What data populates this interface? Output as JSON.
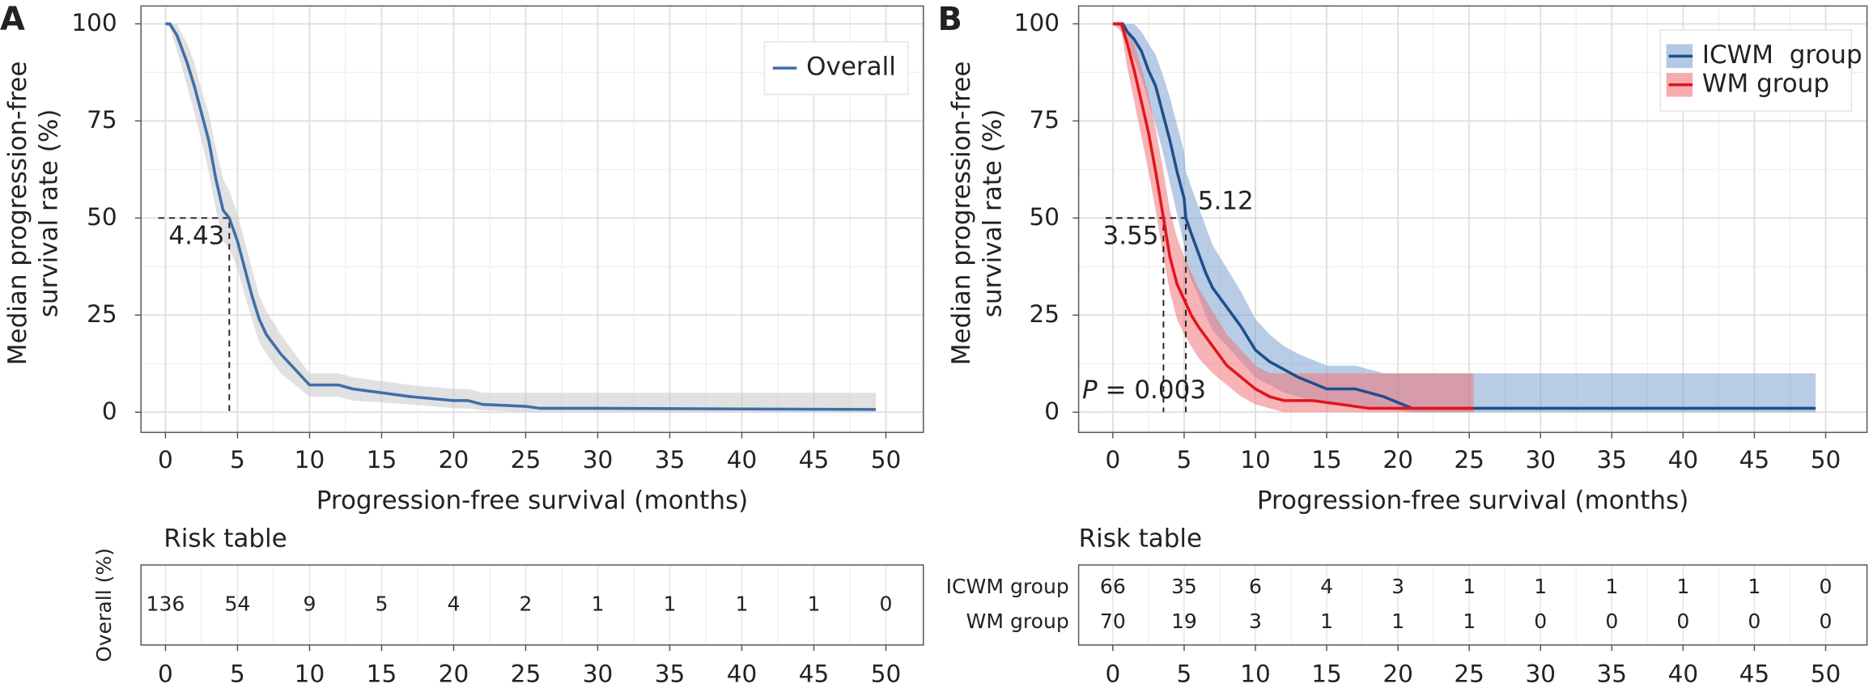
{
  "chart_data": [
    {
      "type": "step",
      "panel_label": "A",
      "xlabel": "Progression-free survival (months)",
      "ylabel": [
        "Median progression-free",
        "survival rate (%)"
      ],
      "xlim": [
        -1.7,
        52.6
      ],
      "ylim": [
        -5.2,
        104.6
      ],
      "xticks": [
        0,
        5,
        10,
        15,
        20,
        25,
        30,
        35,
        40,
        45,
        50
      ],
      "yticks": [
        0,
        25,
        50,
        75,
        100
      ],
      "grid": true,
      "legend": "top-right",
      "legend_key": "line",
      "series": [
        {
          "name": "Overall",
          "color": "#3e6ea8",
          "band_color": "#c8c8c8",
          "label_color": "#1f4e8c",
          "x": [
            0,
            0.3,
            0.8,
            1.2,
            1.5,
            2,
            2.5,
            3,
            3.5,
            4,
            4.43,
            5,
            5.5,
            6,
            6.5,
            7,
            8,
            9,
            10,
            12,
            13,
            15,
            17,
            20,
            21,
            22,
            25,
            26,
            30,
            49.3
          ],
          "values": [
            100,
            100,
            97,
            93,
            90,
            84,
            77,
            70,
            60,
            52,
            50,
            44,
            37,
            30,
            24,
            20,
            15,
            11,
            7,
            7,
            6,
            5,
            4,
            3,
            3,
            2,
            1.5,
            1,
            1,
            0.7
          ],
          "ci_upper": [
            100,
            100,
            100,
            97,
            95,
            90,
            83,
            77,
            68,
            60,
            57,
            51,
            44,
            37,
            30,
            26,
            20,
            15,
            10,
            10,
            9,
            8,
            7,
            6,
            6,
            5,
            5,
            5,
            5,
            5
          ],
          "ci_lower": [
            100,
            99,
            93,
            88,
            84,
            77,
            70,
            62,
            52,
            44,
            42,
            37,
            30,
            24,
            18,
            15,
            10,
            7,
            4,
            4,
            3,
            2.5,
            2,
            1,
            1,
            0.5,
            0,
            0,
            0,
            0
          ],
          "median": 4.43
        }
      ],
      "risk_table": {
        "title": "Risk table",
        "times": [
          0,
          5,
          10,
          15,
          20,
          25,
          30,
          35,
          40,
          45,
          50
        ],
        "rows": [
          {
            "name": "Overall (%)",
            "color": "#1f4e8c",
            "values": [
              136,
              54,
              9,
              5,
              4,
              2,
              1,
              1,
              1,
              1,
              0
            ]
          }
        ]
      }
    },
    {
      "type": "step",
      "panel_label": "B",
      "xlabel": "Progression-free survival (months)",
      "ylabel": [
        "Median progression-free",
        "survival rate (%)"
      ],
      "xlim": [
        -2.4,
        52.9
      ],
      "ylim": [
        -5.2,
        104.6
      ],
      "xticks": [
        0,
        5,
        10,
        15,
        20,
        25,
        30,
        35,
        40,
        45,
        50
      ],
      "yticks": [
        0,
        25,
        50,
        75,
        100
      ],
      "grid": true,
      "legend": "top-right",
      "legend_key": "band",
      "annotation": "P = 0.003",
      "series": [
        {
          "name": "ICWM  group",
          "color": "#1f4e8c",
          "band_color": "#7ea3d2",
          "label_color": "#1f4e8c",
          "x": [
            0,
            0.7,
            1,
            1.5,
            2,
            2.5,
            3,
            3.5,
            4,
            4.5,
            5,
            5.12,
            5.5,
            6,
            6.5,
            7,
            8,
            9,
            10,
            11,
            12,
            13,
            15,
            17,
            19,
            21,
            25,
            49.3
          ],
          "values": [
            100,
            100,
            98,
            96,
            93,
            88,
            84,
            77,
            70,
            62,
            55,
            50,
            46,
            41,
            36,
            32,
            27,
            22,
            16,
            13,
            11,
            9,
            6,
            6,
            4,
            1,
            1,
            1
          ],
          "ci_upper": [
            100,
            100,
            100,
            100,
            98,
            95,
            92,
            87,
            81,
            74,
            67,
            62,
            58,
            53,
            48,
            43,
            37,
            31,
            24,
            20,
            17,
            15,
            12,
            12,
            10,
            10,
            10,
            10
          ],
          "ci_lower": [
            100,
            99,
            95,
            91,
            86,
            80,
            74,
            67,
            59,
            51,
            43,
            38,
            34,
            30,
            25,
            21,
            17,
            13,
            9,
            7,
            5,
            4,
            2,
            2,
            1,
            0,
            0,
            0
          ],
          "median": 5.12
        },
        {
          "name": "WM group",
          "color": "#e4141b",
          "band_color": "#f07478",
          "label_color": "#e8620c",
          "x": [
            0,
            0.6,
            1,
            1.5,
            2,
            2.5,
            3,
            3.55,
            4,
            4.5,
            5,
            5.5,
            6,
            7,
            8,
            9,
            10,
            11,
            12,
            14,
            16,
            18,
            20,
            25.3
          ],
          "values": [
            100,
            100,
            95,
            88,
            80,
            72,
            62,
            50,
            40,
            33,
            29,
            25,
            22,
            17,
            12,
            9,
            6,
            4,
            3,
            3,
            2,
            1,
            1,
            1
          ],
          "ci_upper": [
            100,
            100,
            99,
            95,
            89,
            82,
            73,
            62,
            52,
            45,
            40,
            36,
            32,
            26,
            20,
            16,
            12,
            10,
            10,
            10,
            10,
            10,
            10,
            10
          ],
          "ci_lower": [
            100,
            98,
            89,
            80,
            71,
            62,
            52,
            40,
            31,
            24,
            20,
            17,
            14,
            10,
            7,
            4,
            2,
            1,
            0,
            0,
            0,
            0,
            0,
            0
          ],
          "median": 3.55
        }
      ],
      "risk_table": {
        "title": "Risk table",
        "times": [
          0,
          5,
          10,
          15,
          20,
          25,
          30,
          35,
          40,
          45,
          50
        ],
        "rows": [
          {
            "name": "ICWM group",
            "color": "#1f4e8c",
            "values": [
              66,
              35,
              6,
              4,
              3,
              1,
              1,
              1,
              1,
              1,
              0
            ]
          },
          {
            "name": "WM group",
            "color": "#e8620c",
            "values": [
              70,
              19,
              3,
              1,
              1,
              1,
              0,
              0,
              0,
              0,
              0
            ]
          }
        ]
      }
    }
  ]
}
